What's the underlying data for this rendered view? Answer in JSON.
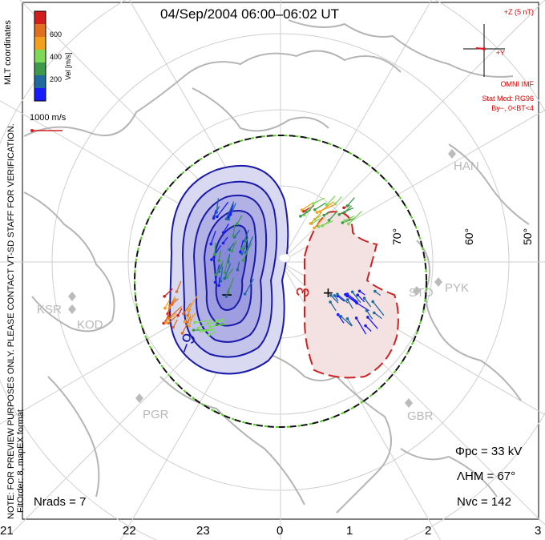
{
  "title": "04/Sep/2004  06:00–06:02  UT",
  "colorbar": {
    "ticks": [
      "600",
      "400",
      "200"
    ],
    "label": "Vel [m/s]",
    "colors": [
      "#1a1aff",
      "#1f6a9f",
      "#3c9a4a",
      "#7ed957",
      "#f3a020",
      "#e07020",
      "#d31c1c"
    ]
  },
  "coordinates_label": "MLT coordinates",
  "scale_vector_label": "1000 m/s",
  "side_note_1": "NOTE: FOR PREVIEW PURPOSES ONLY. PLEASE CONTACT VT-SD STAFF FOR VERIFICATION.",
  "side_note_2": "FitOrder: 8, mapEX format",
  "imf": {
    "scale": "+Z (5 nT)",
    "y_axis": "+Y",
    "source": "OMNI IMF",
    "model": "Stat Mod: RG96",
    "condition": "By−, 0<BT<4"
  },
  "stations": [
    "HAN",
    "STO",
    "PYK",
    "KSR",
    "KOD",
    "PGR",
    "GBR"
  ],
  "lat_labels": [
    "70°",
    "60°",
    "50°"
  ],
  "potential_labels": {
    "neg_contour": "−9",
    "pos_contour": "3",
    "neg_center": "−",
    "pos_center": "+"
  },
  "stats": {
    "phi_pc": "Φpc = 33 kV",
    "lambda_hm": "ΛHM = 67°",
    "n_vc": "Nvc = 142",
    "n_rads": "Nrads = 7"
  },
  "mlt_ticks": [
    "21",
    "22",
    "23",
    "0",
    "1",
    "2",
    "3"
  ],
  "colors": {
    "negative_cell": "#1a1aaa",
    "positive_cell": "#cc2222",
    "boundary_dash_a": "#111111",
    "boundary_dash_b": "#55cc22",
    "coast": "#b5b5b5",
    "grid": "#cccccc"
  }
}
